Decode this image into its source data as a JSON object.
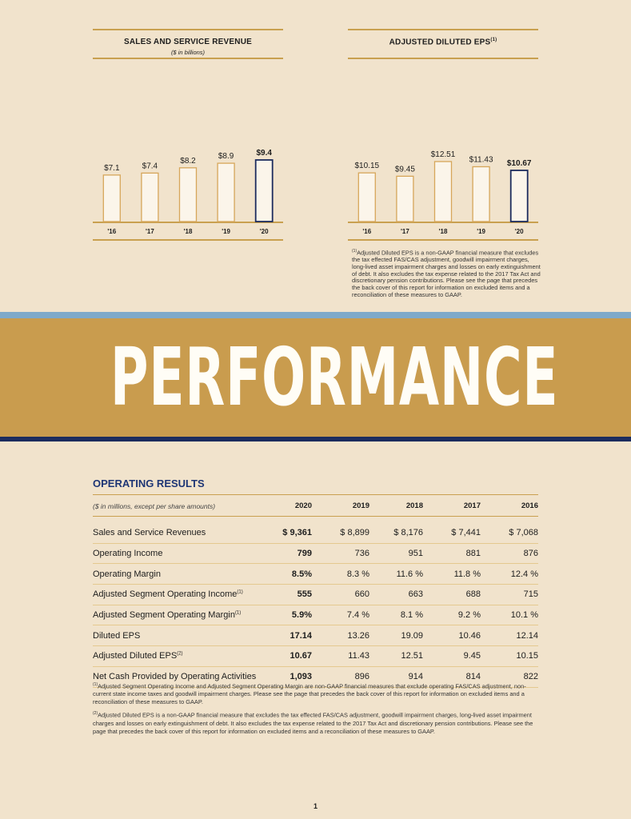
{
  "chart_data": [
    {
      "type": "bar",
      "title": "SALES AND SERVICE REVENUE",
      "subtitle": "($ in billions)",
      "categories": [
        "'16",
        "'17",
        "'18",
        "'19",
        "'20"
      ],
      "values": [
        7.1,
        7.4,
        8.2,
        8.9,
        9.4
      ],
      "labels": [
        "$7.1",
        "$7.4",
        "$8.2",
        "$8.9",
        "$9.4"
      ],
      "highlight_last": true,
      "ylim": [
        0,
        9.4
      ],
      "grid": false
    },
    {
      "type": "bar",
      "title": "ADJUSTED DILUTED EPS",
      "title_note": "(1)",
      "subtitle": "",
      "categories": [
        "'16",
        "'17",
        "'18",
        "'19",
        "'20"
      ],
      "values": [
        10.15,
        9.45,
        12.51,
        11.43,
        10.67
      ],
      "labels": [
        "$10.15",
        "$9.45",
        "$12.51",
        "$11.43",
        "$10.67"
      ],
      "highlight_last": true,
      "ylim": [
        0,
        12.51
      ],
      "grid": false
    }
  ],
  "colors": {
    "background": "#f1e3cc",
    "gold": "#c99c4e",
    "gold_rule": "#c9a04f",
    "bar_fill": "#fbf5ea",
    "bar_stroke": "#d6a65a",
    "highlight_stroke": "#1c2c5e",
    "navy": "#1c2c5e",
    "light_blue": "#7fa9c9",
    "heading_blue": "#1d3575"
  },
  "eps_footnote": {
    "mark": "(1)",
    "text": "Adjusted Diluted EPS is a non-GAAP financial measure that excludes the tax effected FAS/CAS adjustment, goodwill impairment charges, long-lived asset impairment charges and losses on early extinguishment of debt. It also excludes the tax expense related to the 2017 Tax Act and discretionary pension contributions. Please see the page that precedes the back cover of this report for information on excluded items and a reconciliation of these measures to GAAP."
  },
  "banner": {
    "title": "PERFORMANCE"
  },
  "operating_results": {
    "heading": "OPERATING RESULTS",
    "units_note": "($ in millions, except per share amounts)",
    "years": [
      "2020",
      "2019",
      "2018",
      "2017",
      "2016"
    ],
    "rows": [
      {
        "label": "Sales and Service Revenues",
        "note": "",
        "values": [
          "$ 9,361",
          "$ 8,899",
          "$ 8,176",
          "$ 7,441",
          "$ 7,068"
        ]
      },
      {
        "label": "Operating Income",
        "note": "",
        "values": [
          "799",
          "736",
          "951",
          "881",
          "876"
        ]
      },
      {
        "label": "Operating Margin",
        "note": "",
        "values": [
          "8.5%",
          "8.3 %",
          "11.6 %",
          "11.8 %",
          "12.4 %"
        ]
      },
      {
        "label": "Adjusted Segment Operating Income",
        "note": "(1)",
        "values": [
          "555",
          "660",
          "663",
          "688",
          "715"
        ]
      },
      {
        "label": "Adjusted Segment Operating Margin",
        "note": "(1)",
        "values": [
          "5.9%",
          "7.4 %",
          "8.1 %",
          "9.2 %",
          "10.1 %"
        ]
      },
      {
        "label": "Diluted EPS",
        "note": "",
        "values": [
          "17.14",
          "13.26",
          "19.09",
          "10.46",
          "12.14"
        ]
      },
      {
        "label": "Adjusted Diluted EPS",
        "note": "(2)",
        "values": [
          "10.67",
          "11.43",
          "12.51",
          "9.45",
          "10.15"
        ]
      },
      {
        "label": "Net Cash Provided by Operating Activities",
        "note": "",
        "values": [
          "1,093",
          "896",
          "914",
          "814",
          "822"
        ]
      }
    ],
    "footnotes": [
      {
        "mark": "(1)",
        "text": "Adjusted Segment Operating Income and Adjusted Segment Operating Margin are non-GAAP financial measures that exclude operating FAS/CAS adjustment, non-current state income taxes and goodwill impairment charges. Please see the page that precedes the back cover of this report for information on excluded items and a reconciliation of these measures to GAAP."
      },
      {
        "mark": "(2)",
        "text": "Adjusted Diluted EPS is a non-GAAP financial measure that excludes the tax effected FAS/CAS adjustment, goodwill impairment charges, long-lived asset impairment charges and losses on early extinguishment of debt. It also excludes the tax expense related to the 2017 Tax Act and discretionary pension contributions. Please see the page that precedes the back cover of this report for information on excluded items and a reconciliation of these measures to GAAP."
      }
    ]
  },
  "page_number": "1"
}
